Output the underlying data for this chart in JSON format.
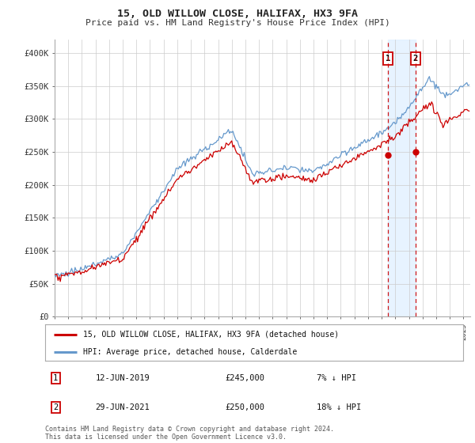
{
  "title": "15, OLD WILLOW CLOSE, HALIFAX, HX3 9FA",
  "subtitle": "Price paid vs. HM Land Registry's House Price Index (HPI)",
  "legend_label_red": "15, OLD WILLOW CLOSE, HALIFAX, HX3 9FA (detached house)",
  "legend_label_blue": "HPI: Average price, detached house, Calderdale",
  "footnote": "Contains HM Land Registry data © Crown copyright and database right 2024.\nThis data is licensed under the Open Government Licence v3.0.",
  "transaction1_label": "1",
  "transaction1_date": "12-JUN-2019",
  "transaction1_price": "£245,000",
  "transaction1_note": "7% ↓ HPI",
  "transaction2_label": "2",
  "transaction2_date": "29-JUN-2021",
  "transaction2_price": "£250,000",
  "transaction2_note": "18% ↓ HPI",
  "ylim": [
    0,
    420000
  ],
  "yticks": [
    0,
    50000,
    100000,
    150000,
    200000,
    250000,
    300000,
    350000,
    400000
  ],
  "ytick_labels": [
    "£0",
    "£50K",
    "£100K",
    "£150K",
    "£200K",
    "£250K",
    "£300K",
    "£350K",
    "£400K"
  ],
  "vline1_x": 2019.44,
  "vline2_x": 2021.49,
  "marker1_y": 245000,
  "marker2_y": 250000,
  "red_color": "#cc0000",
  "blue_color": "#6699cc",
  "shade_color": "#ddeeff",
  "vline_color": "#cc0000",
  "box_color": "#cc0000",
  "background_color": "#ffffff",
  "grid_color": "#cccccc",
  "xlim_start": 1995,
  "xlim_end": 2025.5
}
